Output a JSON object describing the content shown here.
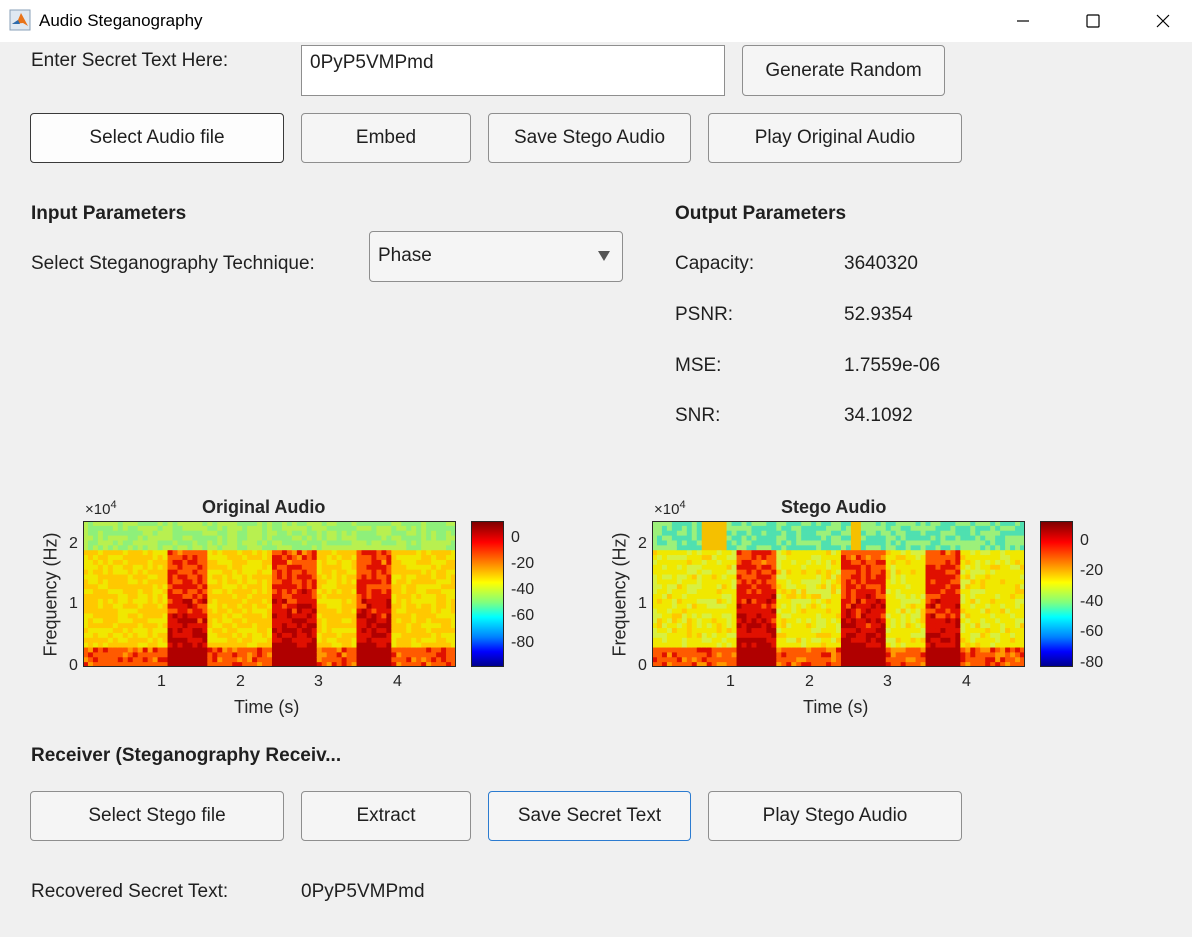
{
  "window": {
    "title": "Audio Steganography"
  },
  "sender": {
    "secret_label": "Enter Secret Text Here:",
    "secret_value": "0PyP5VMPmd",
    "generate_random": "Generate Random",
    "select_audio": "Select Audio file",
    "embed": "Embed",
    "save_stego": "Save Stego Audio",
    "play_original": "Play Original Audio"
  },
  "input_params": {
    "heading": "Input Parameters",
    "technique_label": "Select Steganography Technique:",
    "technique_value": "Phase"
  },
  "output_params": {
    "heading": "Output Parameters",
    "rows": [
      {
        "label": "Capacity:",
        "value": "3640320"
      },
      {
        "label": "PSNR:",
        "value": "52.9354"
      },
      {
        "label": "MSE:",
        "value": "1.7559e-06"
      },
      {
        "label": "SNR:",
        "value": "34.1092"
      }
    ]
  },
  "chart_data": [
    {
      "type": "heatmap",
      "title": "Original Audio",
      "xlabel": "Time (s)",
      "ylabel": "Frequency (Hz)",
      "y_exponent": "×10",
      "y_exponent_power": "4",
      "x_ticks": [
        "1",
        "2",
        "3",
        "4"
      ],
      "y_ticks": [
        "0",
        "1",
        "2"
      ],
      "xlim": [
        0,
        4.75
      ],
      "ylim": [
        0,
        2.4
      ],
      "colorbar_ticks": [
        "0",
        "-20",
        "-40",
        "-60",
        "-80"
      ],
      "colormap": "jet"
    },
    {
      "type": "heatmap",
      "title": "Stego Audio",
      "xlabel": "Time (s)",
      "ylabel": "Frequency (Hz)",
      "y_exponent": "×10",
      "y_exponent_power": "4",
      "x_ticks": [
        "1",
        "2",
        "3",
        "4"
      ],
      "y_ticks": [
        "0",
        "1",
        "2"
      ],
      "xlim": [
        0,
        4.75
      ],
      "ylim": [
        0,
        2.4
      ],
      "colorbar_ticks": [
        "0",
        "-20",
        "-40",
        "-60",
        "-80"
      ],
      "colormap": "jet"
    }
  ],
  "receiver": {
    "heading": "Receiver (Steganography Receiv...",
    "select_stego": "Select Stego file",
    "extract": "Extract",
    "save_secret": "Save Secret Text",
    "play_stego": "Play Stego Audio",
    "recovered_label": "Recovered Secret Text:",
    "recovered_value": "0PyP5VMPmd"
  }
}
